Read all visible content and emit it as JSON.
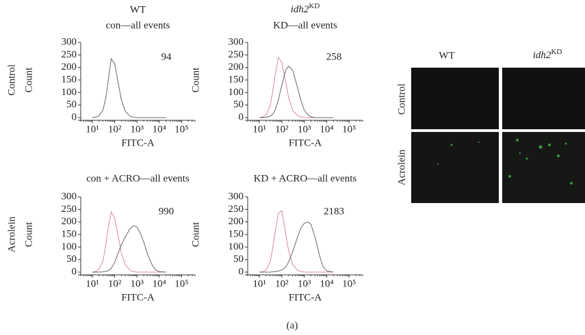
{
  "chart_data": [
    {
      "type": "line",
      "title": "WT",
      "subtitle": "con—all events",
      "annotation": "94",
      "row_label": "Control",
      "xlabel": "FITC-A",
      "ylabel": "Count",
      "xscale": "log",
      "xlim": [
        3,
        400000
      ],
      "ylim": [
        0,
        300
      ],
      "xticks": [
        {
          "value": 10,
          "label": "10¹"
        },
        {
          "value": 100,
          "label": "10²"
        },
        {
          "value": 1000,
          "label": "10³"
        },
        {
          "value": 10000,
          "label": "10⁴"
        },
        {
          "value": 100000,
          "label": "10⁵"
        }
      ],
      "yticks": [
        0,
        50,
        100,
        150,
        200,
        250,
        300
      ],
      "x": [
        10,
        15,
        20,
        30,
        40,
        50,
        70,
        100,
        150,
        200,
        300,
        500,
        700,
        1000,
        1500,
        2000,
        3000,
        5000,
        7000,
        10000,
        20000
      ],
      "series": [
        {
          "color": "#666666",
          "values": [
            0,
            2,
            8,
            30,
            80,
            140,
            235,
            215,
            130,
            70,
            25,
            5,
            1,
            0,
            0,
            0,
            0,
            0,
            0,
            0,
            0
          ]
        }
      ]
    },
    {
      "type": "line",
      "title": "idh2",
      "title_superscript": "KD",
      "subtitle": "KD—all events",
      "annotation": "258",
      "xlabel": "FITC-A",
      "ylabel": "Count",
      "xscale": "log",
      "xlim": [
        3,
        400000
      ],
      "ylim": [
        0,
        300
      ],
      "xticks": [
        {
          "value": 10,
          "label": "10¹"
        },
        {
          "value": 100,
          "label": "10²"
        },
        {
          "value": 1000,
          "label": "10³"
        },
        {
          "value": 10000,
          "label": "10⁴"
        },
        {
          "value": 100000,
          "label": "10⁵"
        }
      ],
      "yticks": [
        0,
        50,
        100,
        150,
        200,
        250,
        300
      ],
      "x": [
        10,
        15,
        20,
        30,
        40,
        50,
        70,
        100,
        150,
        200,
        300,
        500,
        700,
        1000,
        1500,
        2000,
        3000,
        5000,
        7000,
        10000,
        20000
      ],
      "series": [
        {
          "color": "#d9899a",
          "values": [
            0,
            3,
            12,
            45,
            110,
            170,
            240,
            220,
            140,
            80,
            30,
            8,
            2,
            0,
            0,
            0,
            0,
            0,
            0,
            0,
            0
          ]
        },
        {
          "color": "#666666",
          "values": [
            0,
            0,
            1,
            5,
            15,
            30,
            70,
            130,
            190,
            205,
            190,
            120,
            70,
            30,
            10,
            3,
            0,
            0,
            0,
            0,
            0
          ]
        }
      ]
    },
    {
      "type": "line",
      "title": "con + ACRO—all events",
      "annotation": "990",
      "row_label": "Acrolein",
      "xlabel": "FITC-A",
      "ylabel": "Count",
      "xscale": "log",
      "xlim": [
        3,
        400000
      ],
      "ylim": [
        0,
        300
      ],
      "xticks": [
        {
          "value": 10,
          "label": "10¹"
        },
        {
          "value": 100,
          "label": "10²"
        },
        {
          "value": 1000,
          "label": "10³"
        },
        {
          "value": 10000,
          "label": "10⁴"
        },
        {
          "value": 100000,
          "label": "10⁵"
        }
      ],
      "yticks": [
        0,
        50,
        100,
        150,
        200,
        250,
        300
      ],
      "x": [
        10,
        15,
        20,
        30,
        40,
        50,
        70,
        100,
        150,
        200,
        300,
        500,
        700,
        1000,
        1500,
        2000,
        3000,
        5000,
        7000,
        10000,
        20000
      ],
      "series": [
        {
          "color": "#d9899a",
          "values": [
            0,
            3,
            12,
            45,
            110,
            170,
            240,
            215,
            135,
            75,
            28,
            7,
            2,
            0,
            0,
            0,
            0,
            0,
            0,
            0,
            0
          ]
        },
        {
          "color": "#666666",
          "values": [
            0,
            0,
            0,
            1,
            3,
            5,
            15,
            40,
            80,
            110,
            140,
            175,
            185,
            180,
            150,
            120,
            70,
            25,
            8,
            2,
            0
          ]
        }
      ]
    },
    {
      "type": "line",
      "title": "KD + ACRO—all events",
      "annotation": "2183",
      "xlabel": "FITC-A",
      "ylabel": "Count",
      "xscale": "log",
      "xlim": [
        3,
        400000
      ],
      "ylim": [
        0,
        300
      ],
      "xticks": [
        {
          "value": 10,
          "label": "10¹"
        },
        {
          "value": 100,
          "label": "10²"
        },
        {
          "value": 1000,
          "label": "10³"
        },
        {
          "value": 10000,
          "label": "10⁴"
        },
        {
          "value": 100000,
          "label": "10⁵"
        }
      ],
      "yticks": [
        0,
        50,
        100,
        150,
        200,
        250,
        300
      ],
      "x": [
        10,
        15,
        20,
        30,
        40,
        50,
        70,
        100,
        150,
        200,
        300,
        500,
        700,
        1000,
        1500,
        2000,
        3000,
        5000,
        7000,
        10000,
        20000
      ],
      "series": [
        {
          "color": "#d9899a",
          "values": [
            0,
            2,
            10,
            40,
            100,
            160,
            235,
            245,
            150,
            85,
            30,
            8,
            2,
            0,
            0,
            0,
            0,
            0,
            0,
            0,
            0
          ]
        },
        {
          "color": "#666666",
          "values": [
            0,
            0,
            0,
            0,
            1,
            2,
            4,
            8,
            20,
            40,
            80,
            140,
            175,
            195,
            200,
            190,
            140,
            60,
            20,
            5,
            0
          ]
        }
      ]
    }
  ],
  "micrographs": {
    "columns": [
      "WT",
      "idh2"
    ],
    "column_superscript": "KD",
    "rows": [
      "Control",
      "Acrolein"
    ]
  },
  "caption": "(a)"
}
